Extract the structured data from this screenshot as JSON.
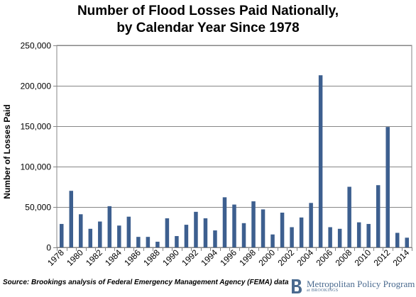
{
  "chart_data": {
    "type": "bar",
    "title": [
      "Number of Flood Losses Paid Nationally,",
      "by Calendar Year Since 1978"
    ],
    "ylabel": "Number of Losses Paid",
    "xlabel": "",
    "ylim": [
      0,
      250000
    ],
    "yticks": [
      0,
      50000,
      100000,
      150000,
      200000,
      250000
    ],
    "ytick_labels": [
      "0",
      "50,000",
      "100,000",
      "150,000",
      "200,000",
      "250,000"
    ],
    "grid": true,
    "legend": "none",
    "bar_color": "#3d5f8f",
    "categories": [
      "1978",
      "1979",
      "1980",
      "1981",
      "1982",
      "1983",
      "1984",
      "1985",
      "1986",
      "1987",
      "1988",
      "1989",
      "1990",
      "1991",
      "1992",
      "1993",
      "1994",
      "1995",
      "1996",
      "1997",
      "1998",
      "1999",
      "2000",
      "2001",
      "2002",
      "2003",
      "2004",
      "2005",
      "2006",
      "2007",
      "2008",
      "2009",
      "2010",
      "2011",
      "2012",
      "2013",
      "2014"
    ],
    "values": [
      29000,
      70000,
      41000,
      23000,
      32000,
      51000,
      27000,
      38000,
      13000,
      13000,
      7000,
      36000,
      14000,
      28000,
      44000,
      36000,
      21000,
      62000,
      53000,
      30000,
      57000,
      47000,
      16000,
      43000,
      25000,
      37000,
      55000,
      213000,
      25000,
      23000,
      75000,
      31000,
      29000,
      77000,
      149000,
      18000,
      12000
    ],
    "xtick_labels": [
      "1978",
      "1980",
      "1982",
      "1984",
      "1986",
      "1988",
      "1990",
      "1992",
      "1994",
      "1996",
      "1998",
      "2000",
      "2002",
      "2004",
      "2006",
      "2008",
      "2010",
      "2012",
      "2014"
    ]
  },
  "source": "Source: Brookings analysis of Federal Emergency Management Agency (FEMA) data",
  "brand": {
    "name": "Metropolitan Policy Program",
    "sub": "at BROOKINGS",
    "logo_color": "#4a6a8f"
  }
}
